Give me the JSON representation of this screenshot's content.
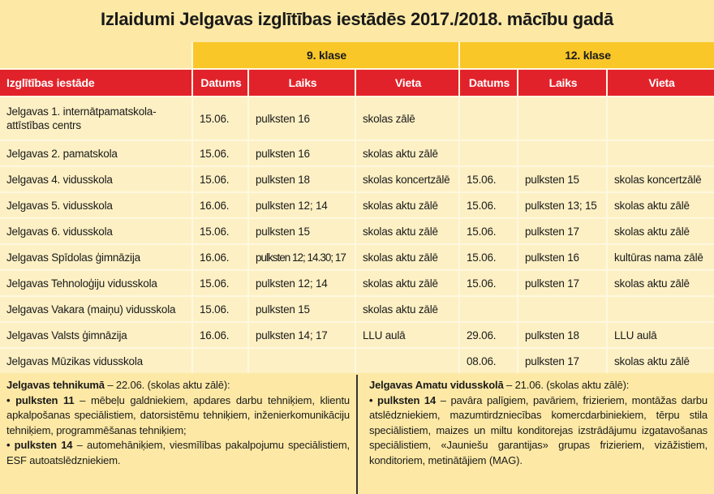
{
  "title": "Izlaidumi Jelgavas izglītības iestādēs 2017./2018. mācību gadā",
  "table": {
    "groups": [
      "9. klase",
      "12. klase"
    ],
    "columns": [
      "Izglītības iestāde",
      "Datums",
      "Laiks",
      "Vieta",
      "Datums",
      "Laiks",
      "Vieta"
    ],
    "rows": [
      [
        "Jelgavas 1. internātpamatskola-attīstības centrs",
        "15.06.",
        "pulksten 16",
        "skolas zālē",
        null,
        null,
        null
      ],
      [
        "Jelgavas 2. pamatskola",
        "15.06.",
        "pulksten 16",
        "skolas aktu zālē",
        null,
        null,
        null
      ],
      [
        "Jelgavas 4. vidusskola",
        "15.06.",
        "pulksten 18",
        "skolas koncertzālē",
        "15.06.",
        "pulksten 15",
        "skolas koncertzālē"
      ],
      [
        "Jelgavas 5. vidusskola",
        "16.06.",
        "pulksten 12; 14",
        "skolas aktu zālē",
        "15.06.",
        "pulksten 13; 15",
        "skolas aktu zālē"
      ],
      [
        "Jelgavas 6. vidusskola",
        "15.06.",
        "pulksten 15",
        "skolas aktu zālē",
        "15.06.",
        "pulksten 17",
        "skolas aktu zālē"
      ],
      [
        "Jelgavas Spīdolas ģimnāzija",
        "16.06.",
        "pulksten 12; 14.30; 17",
        "skolas aktu zālē",
        "15.06.",
        "pulksten 16",
        "kultūras nama zālē"
      ],
      [
        "Jelgavas Tehnoloģiju vidusskola",
        "15.06.",
        "pulksten 12; 14",
        "skolas aktu zālē",
        "15.06.",
        "pulksten 17",
        "skolas aktu zālē"
      ],
      [
        "Jelgavas Vakara (maiņu) vidusskola",
        "15.06.",
        "pulksten 15",
        "skolas aktu zālē",
        null,
        null,
        null
      ],
      [
        "Jelgavas Valsts ģimnāzija",
        "16.06.",
        "pulksten 14; 17",
        "LLU aulā",
        "29.06.",
        "pulksten 18",
        "LLU aulā"
      ],
      [
        "Jelgavas Mūzikas vidusskola",
        null,
        null,
        null,
        "08.06.",
        "pulksten 17",
        "skolas aktu zālē"
      ]
    ]
  },
  "notes": [
    {
      "heading": "Jelgavas tehnikumā",
      "intro": "– 22.06. (skolas aktu zālē):",
      "items": [
        {
          "label": "• pulksten 11",
          "text": "– mēbeļu galdniekiem, apdares darbu tehniķiem, klientu apkalpošanas speciālistiem, datorsistēmu tehniķiem, inženierkomunikāciju tehniķiem, programmēšanas tehniķiem;"
        },
        {
          "label": "• pulksten 14",
          "text": "– automehāniķiem, viesmīlības pakalpojumu speciālistiem, ESF autoatslēdzniekiem."
        }
      ]
    },
    {
      "heading": "Jelgavas Amatu vidusskolā",
      "intro": "– 21.06. (skolas aktu zālē):",
      "items": [
        {
          "label": "• pulksten 14",
          "text": "– pavāra palīgiem, pavāriem, frizieriem, montāžas darbu atslēdzniekiem, mazumtirdzniecības komercdarbiniekiem, tērpu stila speciālistiem, maizes un miltu konditorejas izstrādājumu izgatavošanas speciālistiem, «Jauniešu garantijas» grupas frizieriem, vizāžistiem, konditoriem, metinātājiem (MAG)."
        }
      ]
    }
  ]
}
